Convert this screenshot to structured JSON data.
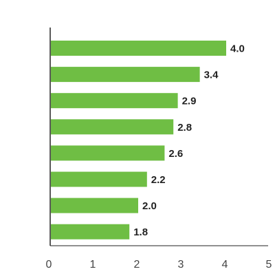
{
  "chart_data": {
    "type": "bar",
    "orientation": "horizontal",
    "title": "",
    "xlabel": "",
    "ylabel": "",
    "categories": [
      "",
      "",
      "",
      "",
      "",
      "",
      "",
      ""
    ],
    "values": [
      4.0,
      3.4,
      2.9,
      2.8,
      2.6,
      2.2,
      2.0,
      1.8
    ],
    "value_labels": [
      "4.0",
      "3.4",
      "2.9",
      "2.8",
      "2.6",
      "2.2",
      "2.0",
      "1.8"
    ],
    "xlim": [
      0,
      5
    ],
    "x_ticks": [
      "0",
      "1",
      "2",
      "3",
      "4",
      "5"
    ],
    "grid": false,
    "legend": "none",
    "bar_color": "#6fbe44",
    "axis_color": "#222222"
  }
}
